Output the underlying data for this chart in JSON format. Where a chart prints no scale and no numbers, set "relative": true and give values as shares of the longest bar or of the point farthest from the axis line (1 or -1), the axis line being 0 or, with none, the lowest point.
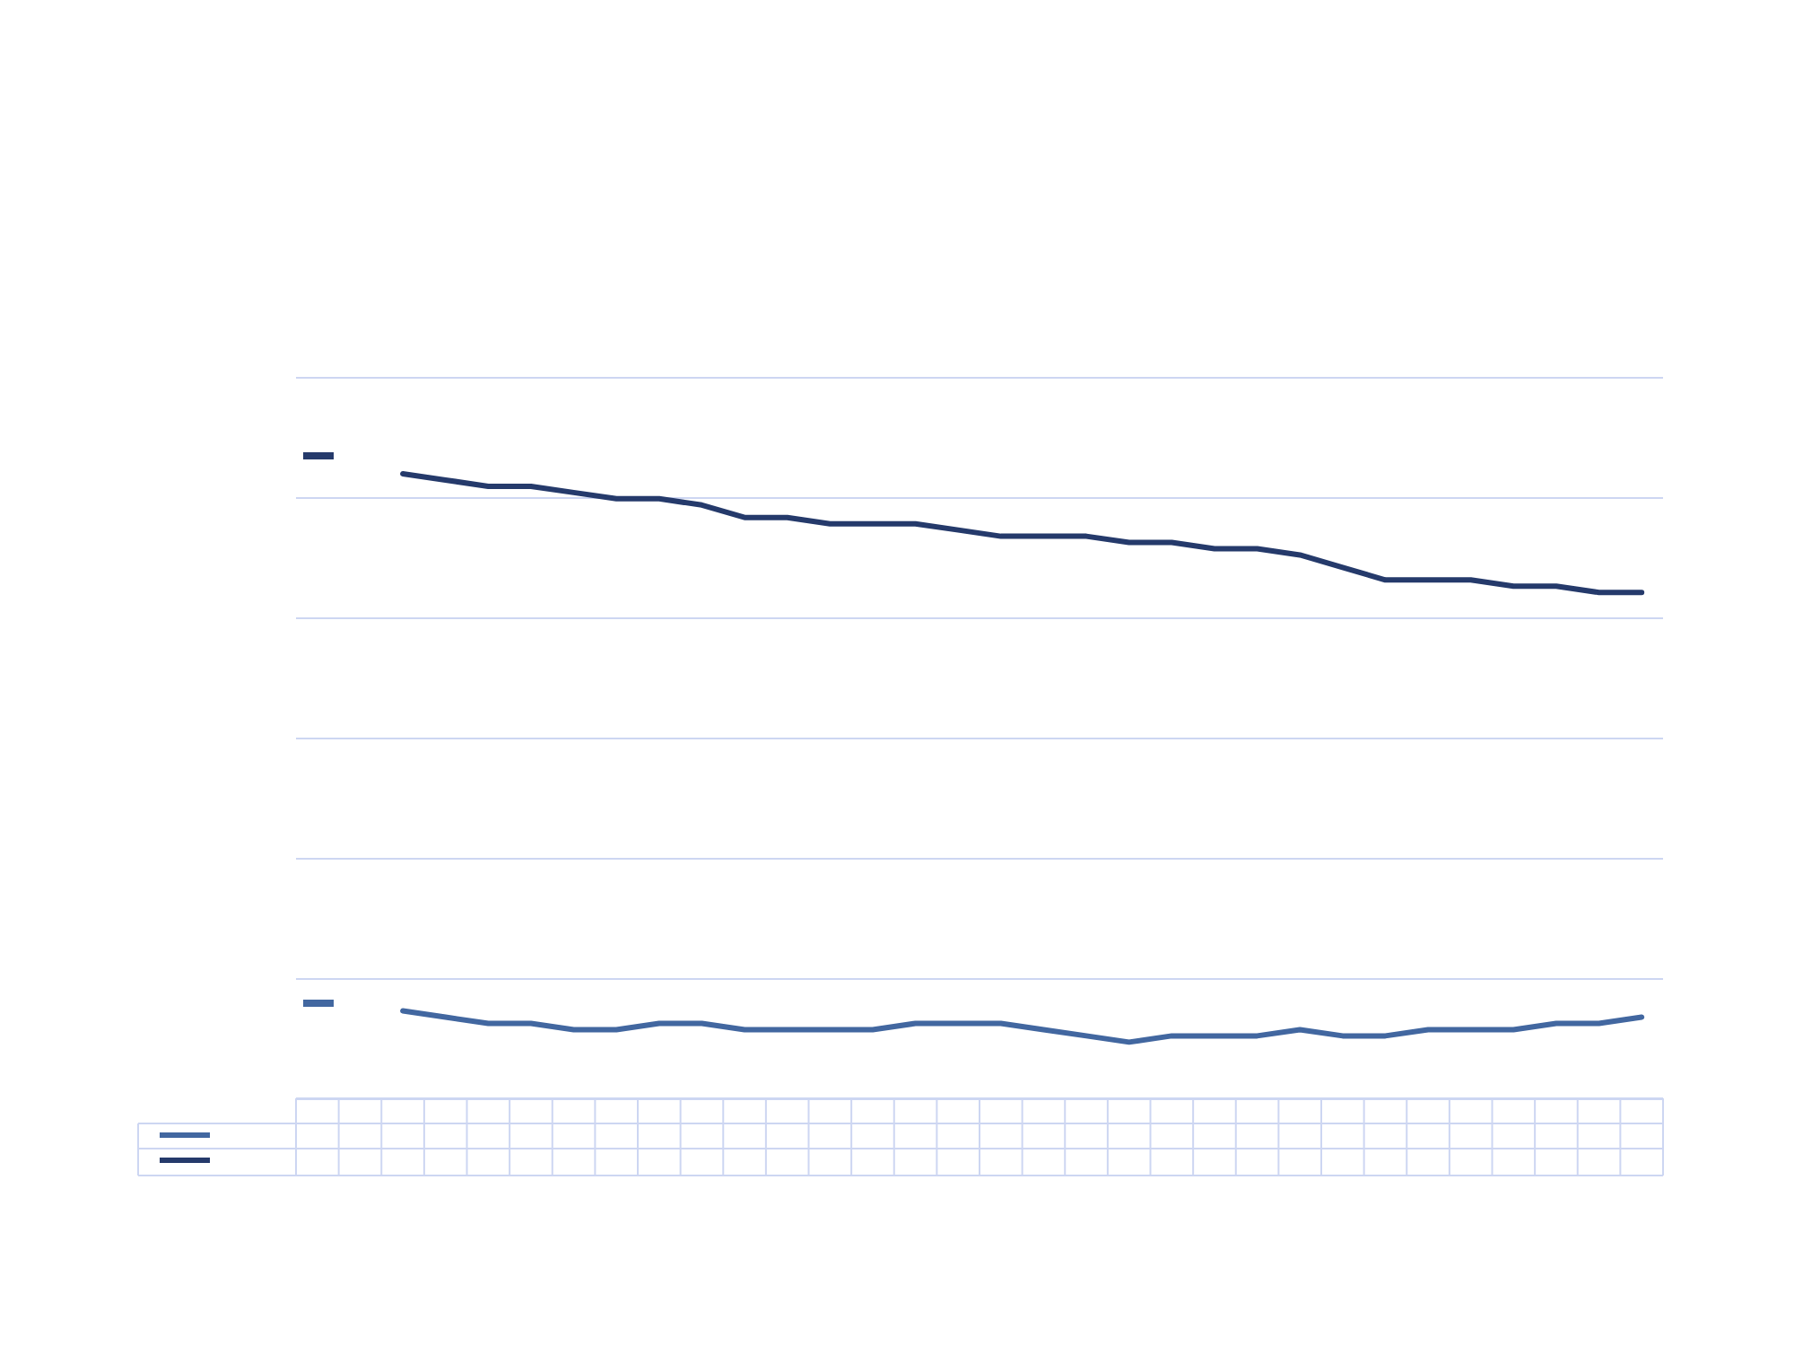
{
  "chart_data": {
    "type": "line",
    "relative": true,
    "grid": "y",
    "marker": "none",
    "line_style": "solid",
    "categories": [
      null,
      null,
      null,
      null,
      null,
      null,
      null,
      null,
      null,
      null,
      null,
      null,
      null,
      null,
      null,
      null,
      null,
      null,
      null,
      null,
      null,
      null,
      null,
      null,
      null,
      null,
      null,
      null,
      null,
      null,
      null,
      null
    ],
    "series": [
      {
        "color": "#4267a0",
        "values": [
          null,
          null,
          0.14,
          0.13,
          0.12,
          0.12,
          0.11,
          0.11,
          0.12,
          0.12,
          0.11,
          0.11,
          0.11,
          0.11,
          0.12,
          0.12,
          0.12,
          0.11,
          0.1,
          0.09,
          0.1,
          0.1,
          0.1,
          0.11,
          0.1,
          0.1,
          0.11,
          0.11,
          0.11,
          0.12,
          0.12,
          0.13
        ]
      },
      {
        "color": "#253a6b",
        "values": [
          null,
          null,
          1.0,
          0.99,
          0.98,
          0.98,
          0.97,
          0.96,
          0.96,
          0.95,
          0.93,
          0.93,
          0.92,
          0.92,
          0.92,
          0.91,
          0.9,
          0.9,
          0.9,
          0.89,
          0.89,
          0.88,
          0.88,
          0.87,
          0.85,
          0.83,
          0.83,
          0.83,
          0.82,
          0.82,
          0.81,
          0.81
        ]
      }
    ]
  }
}
